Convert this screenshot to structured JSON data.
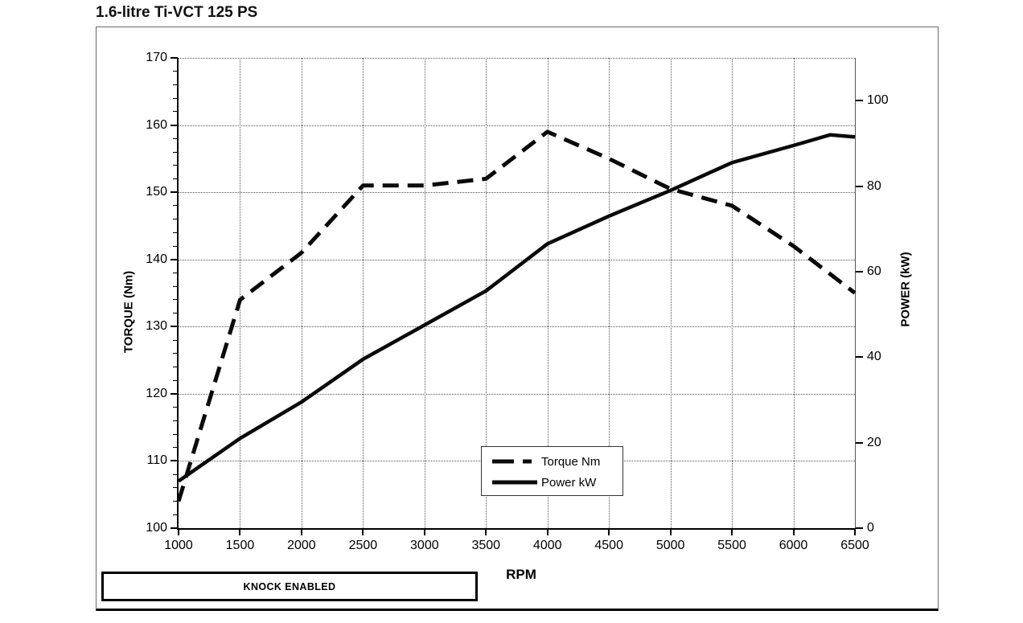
{
  "title": "1.6-litre Ti-VCT 125 PS",
  "annotation_box": {
    "label": "KNOCK ENABLED"
  },
  "colors": {
    "curve": "#0a0a0a",
    "grid_dots": "#555555",
    "frame_border": "#6a6a6a",
    "axis": "#000000"
  },
  "chart_data": {
    "type": "line",
    "title": "1.6-litre Ti-VCT 125 PS",
    "xlabel": "RPM",
    "ylabel_left": "TORQUE (Nm)",
    "ylabel_right": "POWER (kW)",
    "x_range": [
      1000,
      6500
    ],
    "x_ticks": [
      1000,
      1500,
      2000,
      2500,
      3000,
      3500,
      4000,
      4500,
      5000,
      5500,
      6000,
      6500
    ],
    "y_left_range": [
      100,
      170
    ],
    "y_left_ticks": [
      100,
      110,
      120,
      130,
      140,
      150,
      160,
      170
    ],
    "y_left_minor_step": 2,
    "y_right_range": [
      0,
      110
    ],
    "y_right_ticks": [
      0,
      20,
      40,
      60,
      80,
      100
    ],
    "grid": "dotted major gridlines both axes",
    "legend": {
      "position": "inside-bottom-center",
      "entries": [
        {
          "label": "Torque Nm",
          "style": "dashed"
        },
        {
          "label": "Power kW",
          "style": "solid"
        }
      ]
    },
    "series": [
      {
        "name": "Torque Nm",
        "axis": "left",
        "unit": "Nm",
        "style": "dashed",
        "color": "#0a0a0a",
        "points": [
          [
            1000,
            104
          ],
          [
            1500,
            134
          ],
          [
            2000,
            141
          ],
          [
            2500,
            151
          ],
          [
            3000,
            151
          ],
          [
            3500,
            152
          ],
          [
            4000,
            159
          ],
          [
            4500,
            155
          ],
          [
            5000,
            150.5
          ],
          [
            5500,
            148
          ],
          [
            6000,
            142
          ],
          [
            6500,
            135
          ]
        ]
      },
      {
        "name": "Power kW",
        "axis": "right",
        "unit": "kW",
        "style": "solid",
        "color": "#0a0a0a",
        "points": [
          [
            1000,
            11
          ],
          [
            1500,
            21
          ],
          [
            2000,
            29.5
          ],
          [
            2500,
            39.5
          ],
          [
            3000,
            47.5
          ],
          [
            3500,
            55.5
          ],
          [
            4000,
            66.5
          ],
          [
            4500,
            73
          ],
          [
            5000,
            79
          ],
          [
            5500,
            85.5
          ],
          [
            6000,
            89.5
          ],
          [
            6300,
            92
          ],
          [
            6500,
            91.5
          ]
        ]
      }
    ]
  }
}
